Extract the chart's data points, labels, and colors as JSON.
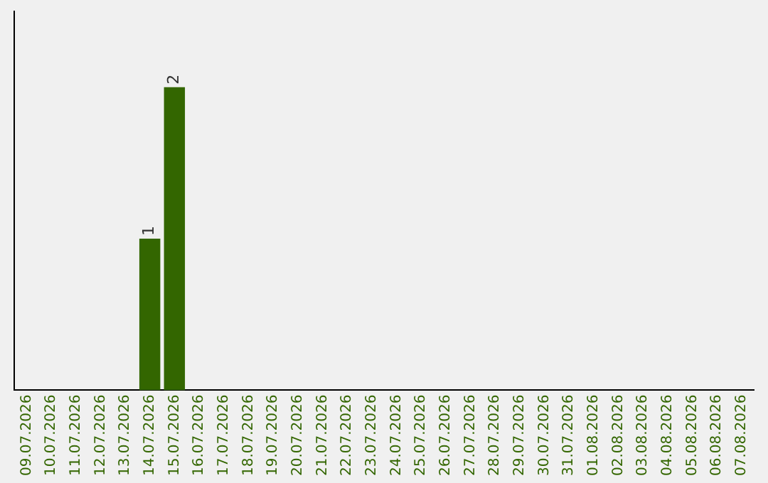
{
  "chart_data": {
    "type": "bar",
    "categories": [
      "09.07.2026",
      "10.07.2026",
      "11.07.2026",
      "12.07.2026",
      "13.07.2026",
      "14.07.2026",
      "15.07.2026",
      "16.07.2026",
      "17.07.2026",
      "18.07.2026",
      "19.07.2026",
      "20.07.2026",
      "21.07.2026",
      "22.07.2026",
      "23.07.2026",
      "24.07.2026",
      "25.07.2026",
      "26.07.2026",
      "27.07.2026",
      "28.07.2026",
      "29.07.2026",
      "30.07.2026",
      "31.07.2026",
      "01.08.2026",
      "02.08.2026",
      "03.08.2026",
      "04.08.2026",
      "05.08.2026",
      "06.08.2026",
      "07.08.2026"
    ],
    "values": [
      0,
      0,
      0,
      0,
      0,
      1,
      2,
      0,
      0,
      0,
      0,
      0,
      0,
      0,
      0,
      0,
      0,
      0,
      0,
      0,
      0,
      0,
      0,
      0,
      0,
      0,
      0,
      0,
      0,
      0
    ],
    "value_labels": [
      null,
      null,
      null,
      null,
      null,
      "1",
      "2",
      null,
      null,
      null,
      null,
      null,
      null,
      null,
      null,
      null,
      null,
      null,
      null,
      null,
      null,
      null,
      null,
      null,
      null,
      null,
      null,
      null,
      null,
      null
    ],
    "color": "#336600",
    "tick_labels": "x",
    "grid": false,
    "legend": false
  }
}
